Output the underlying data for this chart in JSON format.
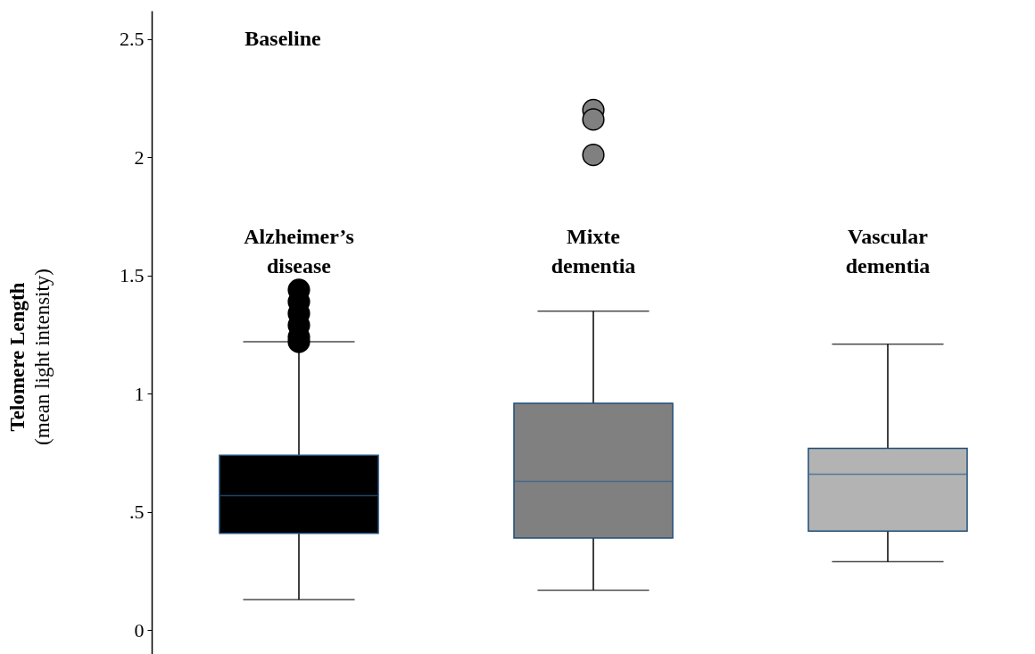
{
  "chart_data": {
    "type": "box",
    "ylabel": "Telomere Length\n(mean light intensity)",
    "annotations": [
      "Baseline"
    ],
    "categories": [
      "Alzheimer’s disease",
      "Mixte dementia",
      "Vascular dementia"
    ],
    "colors": [
      "#000000",
      "#808080",
      "#b3b3b3"
    ],
    "boxes": [
      {
        "low": 0.13,
        "q1": 0.41,
        "median": 0.57,
        "q3": 0.74,
        "high": 1.22,
        "outliers": [
          1.44,
          1.39,
          1.34,
          1.29,
          1.24,
          1.22
        ]
      },
      {
        "low": 0.17,
        "q1": 0.39,
        "median": 0.63,
        "q3": 0.96,
        "high": 1.35,
        "outliers": [
          2.2,
          2.16,
          2.01
        ]
      },
      {
        "low": 0.29,
        "q1": 0.42,
        "median": 0.66,
        "q3": 0.77,
        "high": 1.21
      }
    ],
    "ylim": [
      -0.1,
      2.62
    ],
    "yticks": [
      0,
      {
        "value": 0.5,
        "label": ".5"
      },
      1,
      1.5,
      2,
      2.5
    ],
    "grid": false
  }
}
